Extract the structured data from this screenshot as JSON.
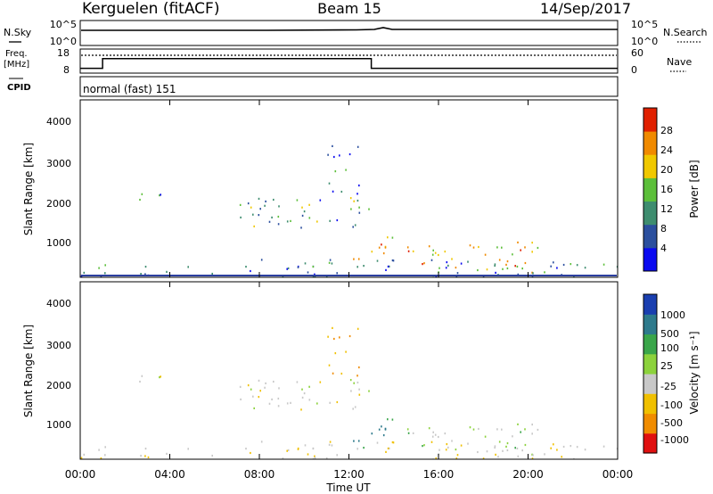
{
  "header": {
    "station": "Kerguelen (fitACF)",
    "beam": "Beam 15",
    "date": "14/Sep/2017"
  },
  "time_axis": {
    "label": "Time UT",
    "ticks": [
      "00:00",
      "04:00",
      "08:00",
      "12:00",
      "16:00",
      "20:00",
      "00:00"
    ],
    "range_hours": [
      0,
      24
    ]
  },
  "noise_panel": {
    "left_label": "N.Sky",
    "right_label": "N.Search",
    "left_ticks": [
      "10^5",
      "10^0"
    ],
    "right_ticks": [
      "10^5",
      "10^0"
    ]
  },
  "freq_panel": {
    "left_label_1": "Freq.",
    "left_label_2": "[MHz]",
    "left_ticks": [
      "18",
      "8"
    ],
    "right_label": "Nave",
    "right_ticks": [
      "60",
      "0"
    ]
  },
  "cpid_panel": {
    "label": "CPID",
    "text": "normal (fast) 151"
  },
  "power_panel": {
    "ylabel": "Slant Range [km]",
    "yticks": [
      "4000",
      "3000",
      "2000",
      "1000"
    ],
    "colorbar_label": "Power [dB]",
    "colorbar_ticks": [
      "28",
      "24",
      "20",
      "16",
      "12",
      "8",
      "4"
    ],
    "colors": [
      "#0a0af0",
      "#2b4f9e",
      "#3e8d6f",
      "#5cbf3a",
      "#f0c800",
      "#f08a00",
      "#e02000"
    ]
  },
  "velocity_panel": {
    "ylabel": "Slant Range [km]",
    "yticks": [
      "4000",
      "3000",
      "2000",
      "1000"
    ],
    "colorbar_label": "Velocity [m s⁻¹]",
    "colorbar_ticks": [
      "1000",
      "500",
      "100",
      "25",
      "-25",
      "-100",
      "-500",
      "-1000"
    ],
    "colors": [
      "#1a3fb0",
      "#2e7a8c",
      "#3aa64a",
      "#8cd23c",
      "#c8c8c8",
      "#f0c000",
      "#f08c00",
      "#e01010"
    ]
  },
  "chart_data": {
    "type": "heatmap",
    "x_unit": "hours UT",
    "y_unit": "slant range km",
    "ylim": [
      200,
      4500
    ],
    "xlim": [
      0,
      24
    ],
    "freq_series": {
      "name": "Freq.",
      "segments": [
        [
          0,
          1.0,
          10
        ],
        [
          1.0,
          13.0,
          14
        ],
        [
          13.0,
          24,
          10
        ]
      ]
    },
    "nave_series": {
      "name": "Nave",
      "value": 48
    },
    "echo_regions": [
      {
        "name": "regionA",
        "x": [
          2.0,
          4.2
        ],
        "y": [
          2050,
          2300
        ],
        "power": 10,
        "velocity": 0
      },
      {
        "name": "regionB",
        "x": [
          6.8,
          12.9
        ],
        "y": [
          1400,
          2150
        ],
        "power": 12,
        "velocity": 0
      },
      {
        "name": "regionC",
        "x": [
          11.0,
          12.5
        ],
        "y": [
          2200,
          3500
        ],
        "power": 6,
        "velocity": -100
      },
      {
        "name": "regionD",
        "x": [
          12.0,
          14.0
        ],
        "y": [
          500,
          1200
        ],
        "power": 20,
        "velocity": 100
      },
      {
        "name": "regionE",
        "x": [
          14.5,
          21.0
        ],
        "y": [
          300,
          1100
        ],
        "power": 22,
        "velocity": 25
      },
      {
        "name": "regionF",
        "x": [
          0.0,
          24.0
        ],
        "y": [
          200,
          650
        ],
        "power": 8,
        "velocity": -25
      }
    ]
  }
}
